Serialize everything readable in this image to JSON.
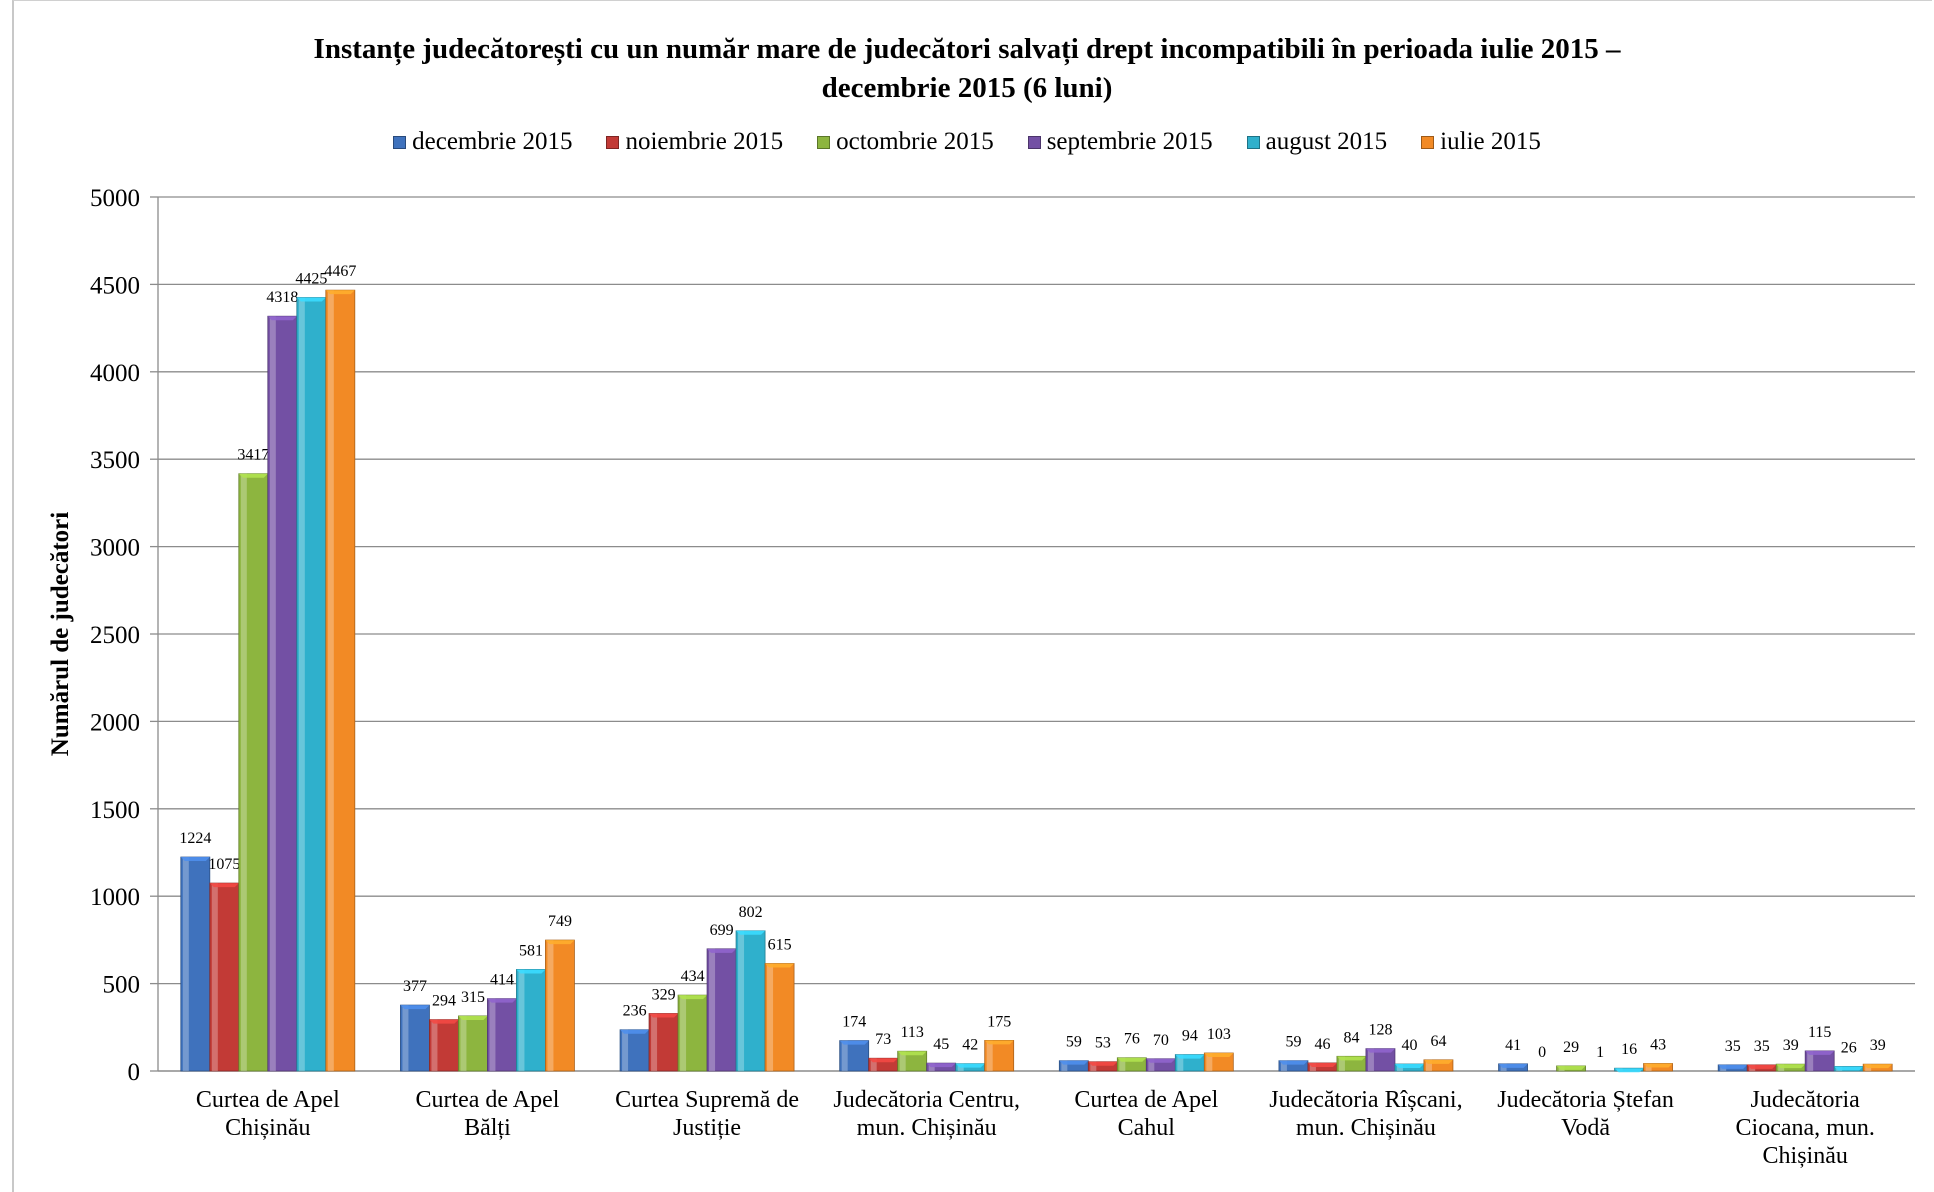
{
  "chart_data": {
    "type": "bar",
    "title_lines": [
      "Instanțe judecătorești cu un număr mare de judecători salvați drept incompatibili în perioada iulie 2015 –",
      "decembrie 2015 (6 luni)"
    ],
    "ylabel": "Numărul de judecători",
    "xlabel": "",
    "ylim": [
      0,
      5000
    ],
    "y_ticks": [
      0,
      500,
      1000,
      1500,
      2000,
      2500,
      3000,
      3500,
      4000,
      4500,
      5000
    ],
    "grid": true,
    "legend_position": "top",
    "categories": [
      [
        "Curtea de Apel",
        "Chișinău"
      ],
      [
        "Curtea de Apel",
        "Bălți"
      ],
      [
        "Curtea Supremă de",
        "Justiție"
      ],
      [
        "Judecătoria Centru,",
        "mun. Chișinău"
      ],
      [
        "Curtea de Apel",
        "Cahul"
      ],
      [
        "Judecătoria Rîșcani,",
        "mun. Chișinău"
      ],
      [
        "Judecătoria Ștefan",
        "Vodă"
      ],
      [
        "Judecătoria",
        "Ciocana, mun.",
        "Chișinău"
      ]
    ],
    "series": [
      {
        "name": "decembrie 2015",
        "color": "#3f72bd",
        "values": [
          1224,
          377,
          236,
          174,
          59,
          59,
          41,
          35
        ]
      },
      {
        "name": "noiembrie 2015",
        "color": "#c23a36",
        "values": [
          1075,
          294,
          329,
          73,
          53,
          46,
          0,
          35
        ]
      },
      {
        "name": "octombrie 2015",
        "color": "#8db53f",
        "values": [
          3417,
          315,
          434,
          113,
          76,
          84,
          29,
          39
        ]
      },
      {
        "name": "septembrie 2015",
        "color": "#7350a4",
        "values": [
          4318,
          414,
          699,
          45,
          70,
          128,
          1,
          115
        ]
      },
      {
        "name": "august 2015",
        "color": "#2fb0cc",
        "values": [
          4425,
          581,
          802,
          42,
          94,
          40,
          16,
          26
        ]
      },
      {
        "name": "iulie 2015",
        "color": "#f28a25",
        "values": [
          4467,
          749,
          615,
          175,
          103,
          64,
          43,
          39
        ]
      }
    ]
  }
}
